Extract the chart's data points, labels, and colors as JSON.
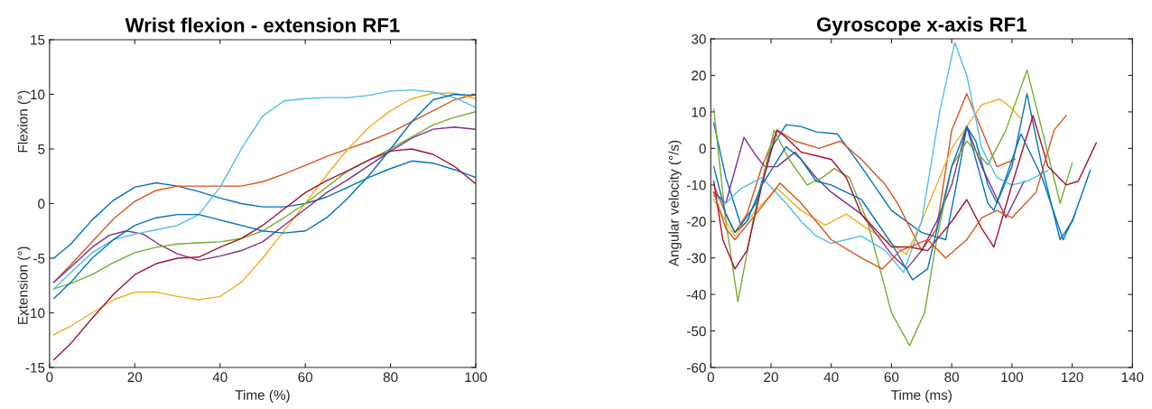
{
  "chart_data": [
    {
      "type": "line",
      "title": "Wrist flexion - extension RF1",
      "xlabel": "Time (%)",
      "annotations": [
        "Flexion (°)",
        "Extension (°)"
      ],
      "xlim": [
        0,
        100
      ],
      "xticks": [
        0,
        20,
        40,
        60,
        80,
        100
      ],
      "ylim": [
        -15,
        15
      ],
      "yticks": [
        -15,
        -10,
        -5,
        0,
        5,
        10,
        15
      ],
      "grid": false,
      "legend": false,
      "series": [
        {
          "color": "#0072bd",
          "x": [
            1,
            5,
            10,
            15,
            20,
            25,
            30,
            35,
            40,
            45,
            50,
            55,
            60,
            65,
            70,
            75,
            80,
            85,
            90,
            95,
            100
          ],
          "values": [
            -5,
            -3.7,
            -1.5,
            0.3,
            1.5,
            1.9,
            1.6,
            1.1,
            0.5,
            0,
            -0.3,
            -0.3,
            0,
            0.6,
            1.5,
            2.4,
            3.2,
            3.9,
            3.7,
            3.1,
            2.4
          ]
        },
        {
          "color": "#d95319",
          "x": [
            1,
            5,
            10,
            15,
            20,
            25,
            30,
            35,
            40,
            45,
            50,
            55,
            60,
            65,
            70,
            75,
            80,
            85,
            90,
            95,
            100
          ],
          "values": [
            -7.2,
            -5.6,
            -3.5,
            -1.4,
            0.2,
            1.2,
            1.6,
            1.6,
            1.6,
            1.6,
            2,
            2.7,
            3.5,
            4.3,
            5,
            5.7,
            6.5,
            7.5,
            8.5,
            9.5,
            10
          ]
        },
        {
          "color": "#edb120",
          "x": [
            1,
            5,
            10,
            15,
            20,
            25,
            30,
            35,
            40,
            45,
            50,
            55,
            60,
            65,
            70,
            75,
            80,
            85,
            90,
            95,
            100
          ],
          "values": [
            -12,
            -11.2,
            -10,
            -8.8,
            -8.1,
            -8.1,
            -8.5,
            -8.8,
            -8.5,
            -7.2,
            -5,
            -2.5,
            0,
            2.6,
            5,
            7,
            8.5,
            9.6,
            10.1,
            10.1,
            9.6
          ]
        },
        {
          "color": "#7e2f8e",
          "x": [
            1,
            5,
            10,
            14,
            18,
            22,
            26,
            30,
            35,
            40,
            45,
            50,
            55,
            60,
            65,
            70,
            75,
            80,
            85,
            90,
            95,
            100
          ],
          "values": [
            -7.2,
            -5.8,
            -4,
            -2.9,
            -2.5,
            -2.8,
            -3.8,
            -4.6,
            -5.2,
            -4.8,
            -4.3,
            -3.5,
            -2,
            -0.5,
            1,
            2.2,
            3.5,
            4.8,
            6,
            6.8,
            7,
            6.8
          ]
        },
        {
          "color": "#77ac30",
          "x": [
            1,
            5,
            10,
            15,
            20,
            25,
            30,
            35,
            40,
            45,
            50,
            55,
            60,
            65,
            70,
            75,
            80,
            85,
            90,
            95,
            100
          ],
          "values": [
            -7.8,
            -7.3,
            -6.5,
            -5.4,
            -4.5,
            -4,
            -3.7,
            -3.6,
            -3.5,
            -3.2,
            -2.5,
            -1.3,
            0,
            1.5,
            3,
            4,
            5,
            6.1,
            7.2,
            7.9,
            8.4
          ]
        },
        {
          "color": "#4dbeee",
          "x": [
            1,
            5,
            10,
            15,
            20,
            25,
            30,
            35,
            40,
            45,
            50,
            55,
            60,
            65,
            70,
            75,
            80,
            85,
            90,
            95,
            100
          ],
          "values": [
            -7.8,
            -6.3,
            -4.5,
            -3.3,
            -2.8,
            -2.4,
            -2,
            -1,
            1.5,
            5,
            8,
            9.4,
            9.6,
            9.7,
            9.7,
            9.9,
            10.3,
            10.4,
            10.2,
            9.7,
            8.8
          ]
        },
        {
          "color": "#a2142f",
          "x": [
            1,
            5,
            10,
            15,
            20,
            25,
            30,
            35,
            40,
            45,
            50,
            55,
            60,
            65,
            70,
            75,
            80,
            85,
            90,
            95,
            100
          ],
          "values": [
            -14.3,
            -12.8,
            -10.5,
            -8.3,
            -6.5,
            -5.5,
            -5,
            -4.9,
            -4,
            -3.2,
            -2,
            -0.5,
            1,
            2.1,
            3,
            4,
            4.8,
            5,
            4.5,
            3.4,
            1.8
          ]
        },
        {
          "color": "#0072bd",
          "x": [
            1,
            5,
            10,
            15,
            20,
            25,
            30,
            35,
            40,
            45,
            50,
            55,
            60,
            65,
            70,
            75,
            80,
            85,
            90,
            95,
            100
          ],
          "values": [
            -8.7,
            -7.2,
            -5,
            -3.3,
            -2,
            -1.3,
            -1,
            -1,
            -1.5,
            -2,
            -2.5,
            -2.7,
            -2.5,
            -1.3,
            0.5,
            2.6,
            5,
            7.5,
            9.5,
            10,
            9.9
          ]
        }
      ]
    },
    {
      "type": "line",
      "title": "Gyroscope x-axis RF1",
      "xlabel": "Time (ms)",
      "ylabel": "Angular velocity (°/s)",
      "xlim": [
        0,
        140
      ],
      "xticks": [
        0,
        20,
        40,
        60,
        80,
        100,
        120,
        140
      ],
      "ylim": [
        -60,
        30
      ],
      "yticks": [
        -60,
        -50,
        -40,
        -30,
        -20,
        -10,
        0,
        10,
        20,
        30
      ],
      "grid": false,
      "legend": false,
      "series": [
        {
          "color": "#0072bd",
          "x": [
            1,
            5,
            10,
            15,
            20,
            25,
            30,
            35,
            42,
            50,
            60,
            70,
            78,
            82,
            85,
            88,
            92,
            95,
            100,
            105,
            110,
            116,
            120,
            126
          ],
          "values": [
            7,
            -8,
            -21,
            -15,
            0,
            6.5,
            6,
            4.5,
            4,
            -5,
            -17,
            -23,
            -25,
            -8,
            6,
            2,
            -10,
            -15,
            -5,
            15,
            -5,
            -25,
            -20,
            -6
          ]
        },
        {
          "color": "#d95319",
          "x": [
            1,
            5,
            8,
            12,
            17,
            22,
            28,
            36,
            43,
            50,
            58,
            62,
            70,
            75,
            80,
            85,
            90,
            95,
            101
          ],
          "values": [
            -10,
            -18,
            -23,
            -18,
            -5,
            5,
            2,
            0,
            2,
            -3,
            -10,
            -15,
            -28,
            -22,
            5,
            15,
            5,
            -5,
            -3
          ]
        },
        {
          "color": "#edb120",
          "x": [
            1,
            5,
            8,
            15,
            22,
            30,
            38,
            45,
            52,
            60,
            65,
            70,
            80,
            90,
            96,
            100,
            103
          ],
          "values": [
            -14,
            -20,
            -24,
            -17,
            -11,
            -17,
            -21,
            -18,
            -22,
            -26,
            -29,
            -20,
            0,
            12,
            13.5,
            11,
            8
          ]
        },
        {
          "color": "#7e2f8e",
          "x": [
            1,
            5,
            11,
            15,
            18,
            22,
            28,
            35,
            40,
            50,
            60,
            65,
            70,
            75,
            80,
            85,
            90,
            98,
            104
          ],
          "values": [
            -12,
            -15,
            3,
            -2,
            -5,
            -5,
            -1,
            -8,
            -12,
            -18,
            -29,
            -33,
            -28,
            -20,
            -10,
            6,
            -5,
            -19,
            -9
          ]
        },
        {
          "color": "#77ac30",
          "x": [
            1,
            5,
            9,
            14,
            21,
            26,
            32,
            37,
            41,
            46,
            52,
            60,
            66,
            71,
            75,
            80,
            85,
            92,
            98,
            105,
            110,
            116,
            120
          ],
          "values": [
            10.7,
            -20,
            -42,
            -20,
            5,
            -3,
            -10,
            -8,
            -5.5,
            -8,
            -20,
            -45,
            -54,
            -45,
            -25,
            -5,
            2,
            -4.5,
            5,
            21.5,
            5,
            -15,
            -4
          ]
        },
        {
          "color": "#4dbeee",
          "x": [
            1,
            5,
            10,
            17,
            25,
            30,
            35,
            40,
            50,
            58,
            64,
            70,
            76,
            81,
            85,
            90,
            95,
            100,
            105,
            112
          ],
          "values": [
            -13,
            -15,
            -11,
            -8,
            -15,
            -20,
            -24,
            -26,
            -24,
            -28,
            -34,
            -20,
            10,
            29,
            20,
            0,
            -8,
            -10,
            -9,
            -6
          ]
        },
        {
          "color": "#a2142f",
          "x": [
            1,
            4,
            8,
            12,
            17,
            22,
            25,
            30,
            35,
            40,
            45,
            50,
            60,
            66,
            72,
            80,
            85,
            90,
            94,
            100,
            107,
            112,
            118,
            122,
            128
          ],
          "values": [
            -9,
            -25,
            -33,
            -28,
            -10,
            5,
            3,
            -1,
            -2,
            -3,
            -8,
            -18,
            -27,
            -27,
            -28,
            -20,
            -14,
            -22,
            -27,
            -10,
            9,
            -5,
            -10,
            -9,
            1.5
          ]
        },
        {
          "color": "#0072bd",
          "x": [
            1,
            5,
            8,
            12,
            17,
            25,
            30,
            35,
            40,
            50,
            60,
            67,
            72,
            80,
            85,
            92,
            94,
            98,
            103,
            110,
            117,
            121
          ],
          "values": [
            -5,
            -18,
            -23,
            -20,
            -10,
            0.5,
            -3,
            -9,
            -10,
            -14,
            -26,
            -36,
            -33,
            -5,
            6,
            -15,
            -17,
            -8,
            4,
            -8,
            -25,
            -18
          ]
        },
        {
          "color": "#d95319",
          "x": [
            1,
            5,
            8,
            15,
            23,
            30,
            40,
            50,
            57,
            63,
            72,
            78,
            85,
            90,
            95,
            100,
            108,
            114,
            118
          ],
          "values": [
            -12,
            -22,
            -25,
            -18,
            -9.5,
            -15,
            -25,
            -30,
            -33,
            -28,
            -25,
            -30,
            -25,
            -19,
            -17,
            -19,
            -12,
            5,
            9
          ]
        }
      ]
    }
  ]
}
